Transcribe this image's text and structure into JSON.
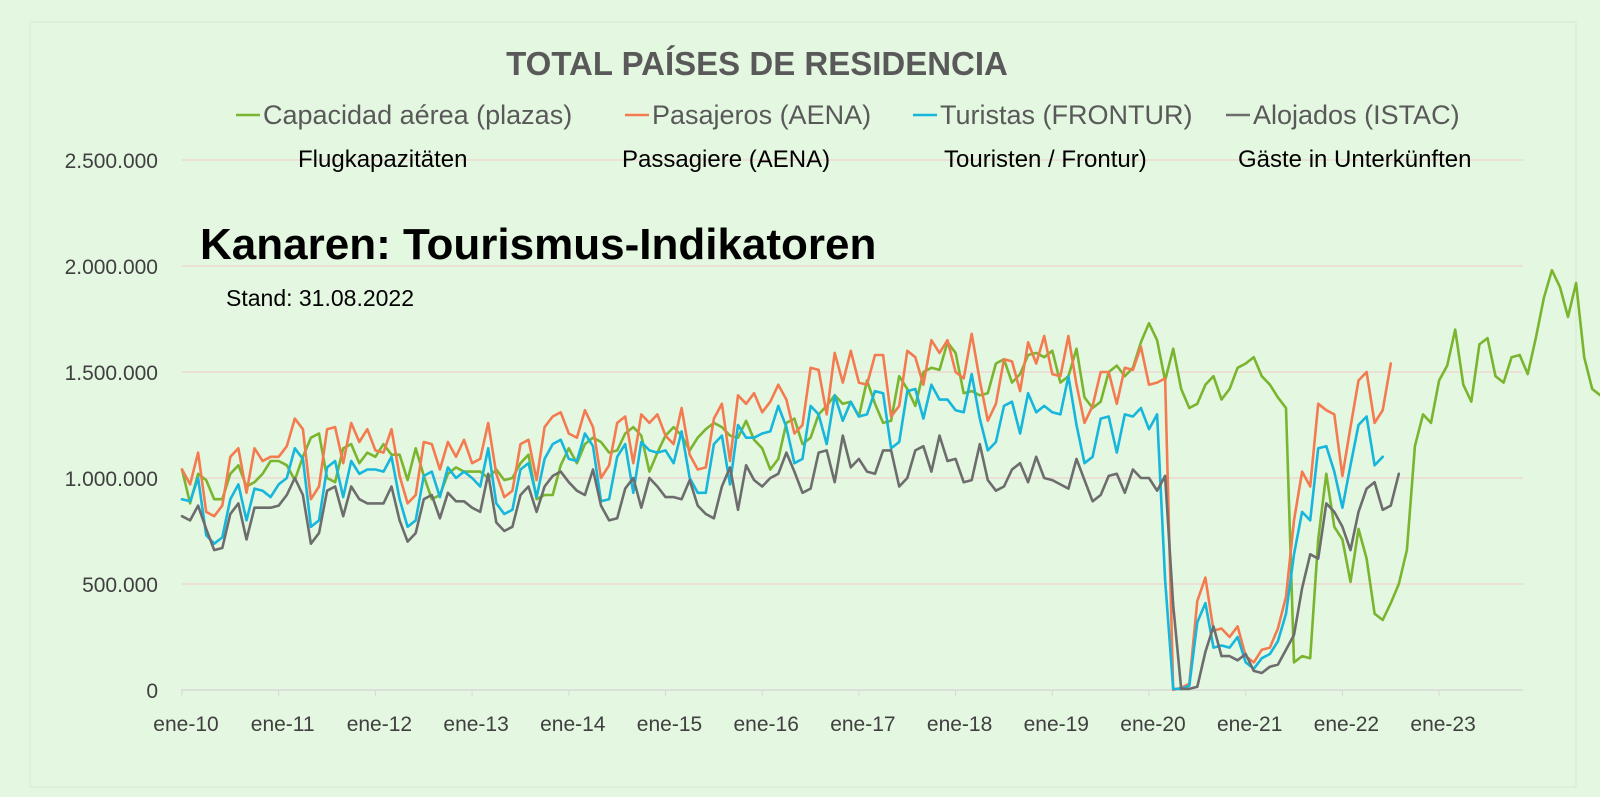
{
  "overlay": {
    "title": "Kanaren: Tourismus-Indikatoren",
    "stand": "Stand: 31.08.2022",
    "german_labels": [
      "Flugkapazitäten",
      "Passagiere (AENA)",
      "Touristen / Frontur)",
      "Gäste in Unterkünften"
    ]
  },
  "chart_data": {
    "type": "line",
    "title": "TOTAL PAÍSES DE RESIDENCIA",
    "xlabel": "",
    "ylabel": "",
    "ylim": [
      0,
      2500000
    ],
    "yticks": [
      0,
      500000,
      1000000,
      1500000,
      2000000,
      2500000
    ],
    "ytick_labels": [
      "0",
      "500.000",
      "1.000.000",
      "1.500.000",
      "2.000.000",
      "2.500.000"
    ],
    "x_start": "2010-01",
    "xtick_labels": [
      "ene-10",
      "ene-11",
      "ene-12",
      "ene-13",
      "ene-14",
      "ene-15",
      "ene-16",
      "ene-17",
      "ene-18",
      "ene-19",
      "ene-20",
      "ene-21",
      "ene-22",
      "ene-23"
    ],
    "grid": true,
    "legend_position": "top",
    "colors": {
      "background": "#e4f7e1",
      "grid": "#f2c9c9",
      "axis": "#d9d9d9",
      "title": "#595959",
      "tick_text": "#404040"
    },
    "series": [
      {
        "name": "Capacidad aérea (plazas)",
        "color": "#7ab52f",
        "values": [
          1040000,
          880000,
          1020000,
          990000,
          900000,
          900000,
          1020000,
          1060000,
          960000,
          980000,
          1020000,
          1080000,
          1080000,
          1060000,
          990000,
          1100000,
          1190000,
          1210000,
          1000000,
          980000,
          1140000,
          1160000,
          1070000,
          1120000,
          1100000,
          1160000,
          1110000,
          1110000,
          990000,
          1140000,
          1010000,
          900000,
          920000,
          1020000,
          1050000,
          1030000,
          1030000,
          1030000,
          1000000,
          1040000,
          990000,
          1000000,
          1070000,
          1110000,
          900000,
          920000,
          920000,
          1060000,
          1140000,
          1070000,
          1160000,
          1190000,
          1170000,
          1120000,
          1130000,
          1210000,
          1240000,
          1200000,
          1030000,
          1120000,
          1200000,
          1240000,
          1200000,
          1130000,
          1190000,
          1230000,
          1260000,
          1240000,
          1200000,
          1190000,
          1270000,
          1180000,
          1140000,
          1040000,
          1090000,
          1260000,
          1280000,
          1160000,
          1190000,
          1300000,
          1340000,
          1390000,
          1350000,
          1360000,
          1290000,
          1460000,
          1350000,
          1260000,
          1270000,
          1480000,
          1420000,
          1340000,
          1500000,
          1520000,
          1510000,
          1640000,
          1590000,
          1400000,
          1410000,
          1390000,
          1400000,
          1540000,
          1560000,
          1450000,
          1490000,
          1580000,
          1590000,
          1570000,
          1600000,
          1450000,
          1480000,
          1610000,
          1380000,
          1330000,
          1360000,
          1500000,
          1530000,
          1480000,
          1520000,
          1640000,
          1730000,
          1650000,
          1460000,
          1610000,
          1420000,
          1330000,
          1350000,
          1440000,
          1480000,
          1370000,
          1420000,
          1520000,
          1540000,
          1570000,
          1480000,
          1440000,
          1380000,
          1330000,
          130000,
          160000,
          150000,
          710000,
          1020000,
          770000,
          710000,
          510000,
          760000,
          620000,
          360000,
          330000,
          410000,
          500000,
          660000,
          1150000,
          1300000,
          1260000,
          1460000,
          1530000,
          1700000,
          1440000,
          1360000,
          1630000,
          1660000,
          1480000,
          1450000,
          1570000,
          1580000,
          1490000,
          1660000,
          1850000,
          1980000,
          1900000,
          1760000,
          1920000,
          1570000,
          1420000,
          1390000,
          1460000
        ]
      },
      {
        "name": "Pasajeros (AENA)",
        "color": "#f47b50",
        "values": [
          1040000,
          970000,
          1120000,
          840000,
          820000,
          870000,
          1100000,
          1140000,
          930000,
          1140000,
          1080000,
          1100000,
          1100000,
          1150000,
          1280000,
          1230000,
          900000,
          960000,
          1230000,
          1240000,
          1070000,
          1260000,
          1170000,
          1230000,
          1130000,
          1120000,
          1230000,
          1010000,
          880000,
          920000,
          1170000,
          1160000,
          1040000,
          1170000,
          1100000,
          1180000,
          1070000,
          1090000,
          1260000,
          1020000,
          910000,
          940000,
          1160000,
          1180000,
          990000,
          1240000,
          1290000,
          1310000,
          1210000,
          1190000,
          1320000,
          1240000,
          1000000,
          1060000,
          1260000,
          1290000,
          1070000,
          1300000,
          1260000,
          1300000,
          1200000,
          1160000,
          1330000,
          1110000,
          1040000,
          1050000,
          1280000,
          1350000,
          1080000,
          1390000,
          1350000,
          1400000,
          1310000,
          1360000,
          1440000,
          1370000,
          1210000,
          1250000,
          1520000,
          1510000,
          1300000,
          1590000,
          1450000,
          1600000,
          1450000,
          1440000,
          1580000,
          1580000,
          1290000,
          1340000,
          1600000,
          1570000,
          1440000,
          1650000,
          1590000,
          1650000,
          1500000,
          1470000,
          1680000,
          1460000,
          1270000,
          1350000,
          1560000,
          1550000,
          1410000,
          1640000,
          1540000,
          1670000,
          1490000,
          1480000,
          1670000,
          1440000,
          1260000,
          1340000,
          1500000,
          1500000,
          1350000,
          1520000,
          1510000,
          1620000,
          1440000,
          1450000,
          1470000,
          1000,
          10000,
          30000,
          420000,
          530000,
          280000,
          290000,
          250000,
          300000,
          160000,
          130000,
          190000,
          200000,
          290000,
          440000,
          800000,
          1030000,
          960000,
          1350000,
          1320000,
          1300000,
          1010000,
          1240000,
          1460000,
          1500000,
          1260000,
          1320000,
          1540000
        ]
      },
      {
        "name": "Turistas (FRONTUR)",
        "color": "#17b6dc",
        "values": [
          900000,
          890000,
          1000000,
          730000,
          690000,
          720000,
          900000,
          970000,
          800000,
          950000,
          940000,
          910000,
          970000,
          1000000,
          1140000,
          1090000,
          770000,
          800000,
          1050000,
          1080000,
          910000,
          1080000,
          1020000,
          1040000,
          1040000,
          1030000,
          1100000,
          900000,
          770000,
          800000,
          1010000,
          1030000,
          910000,
          1050000,
          1000000,
          1030000,
          1000000,
          960000,
          1140000,
          880000,
          830000,
          850000,
          1040000,
          1070000,
          910000,
          1090000,
          1160000,
          1180000,
          1090000,
          1080000,
          1210000,
          1150000,
          890000,
          900000,
          1100000,
          1160000,
          930000,
          1170000,
          1130000,
          1120000,
          1130000,
          1070000,
          1220000,
          1000000,
          930000,
          930000,
          1160000,
          1200000,
          970000,
          1250000,
          1190000,
          1190000,
          1210000,
          1220000,
          1340000,
          1240000,
          1070000,
          1090000,
          1340000,
          1300000,
          1160000,
          1390000,
          1270000,
          1360000,
          1290000,
          1300000,
          1410000,
          1400000,
          1140000,
          1170000,
          1410000,
          1420000,
          1280000,
          1440000,
          1370000,
          1370000,
          1320000,
          1310000,
          1490000,
          1280000,
          1130000,
          1170000,
          1340000,
          1360000,
          1210000,
          1400000,
          1310000,
          1340000,
          1310000,
          1300000,
          1480000,
          1250000,
          1070000,
          1100000,
          1280000,
          1290000,
          1120000,
          1300000,
          1290000,
          1330000,
          1230000,
          1300000,
          520000,
          5000,
          5000,
          20000,
          320000,
          410000,
          200000,
          210000,
          200000,
          250000,
          130000,
          100000,
          150000,
          170000,
          230000,
          360000,
          640000,
          840000,
          800000,
          1140000,
          1150000,
          1030000,
          860000,
          1060000,
          1250000,
          1290000,
          1060000,
          1100000
        ]
      },
      {
        "name": "Alojados (ISTAC)",
        "color": "#6d6d6d",
        "values": [
          820000,
          800000,
          870000,
          760000,
          660000,
          670000,
          830000,
          880000,
          710000,
          860000,
          860000,
          860000,
          870000,
          920000,
          1000000,
          920000,
          690000,
          740000,
          940000,
          960000,
          820000,
          960000,
          900000,
          880000,
          880000,
          880000,
          960000,
          800000,
          700000,
          740000,
          900000,
          920000,
          810000,
          930000,
          890000,
          890000,
          860000,
          840000,
          1020000,
          790000,
          750000,
          770000,
          920000,
          960000,
          840000,
          960000,
          1010000,
          1030000,
          980000,
          940000,
          920000,
          1040000,
          870000,
          800000,
          810000,
          950000,
          1000000,
          860000,
          1000000,
          960000,
          910000,
          910000,
          900000,
          990000,
          870000,
          830000,
          810000,
          960000,
          1050000,
          850000,
          1060000,
          990000,
          960000,
          1000000,
          1020000,
          1120000,
          1030000,
          930000,
          950000,
          1120000,
          1130000,
          980000,
          1200000,
          1050000,
          1090000,
          1030000,
          1020000,
          1130000,
          1130000,
          960000,
          1000000,
          1130000,
          1150000,
          1030000,
          1200000,
          1080000,
          1090000,
          980000,
          990000,
          1160000,
          990000,
          940000,
          960000,
          1040000,
          1070000,
          980000,
          1100000,
          1000000,
          990000,
          970000,
          950000,
          1090000,
          990000,
          890000,
          920000,
          1010000,
          1020000,
          930000,
          1040000,
          1000000,
          1000000,
          940000,
          1010000,
          400000,
          5000,
          5000,
          15000,
          180000,
          300000,
          160000,
          160000,
          140000,
          170000,
          90000,
          80000,
          110000,
          120000,
          190000,
          260000,
          480000,
          640000,
          620000,
          880000,
          840000,
          770000,
          660000,
          840000,
          950000,
          980000,
          850000,
          870000,
          1020000
        ]
      }
    ]
  }
}
